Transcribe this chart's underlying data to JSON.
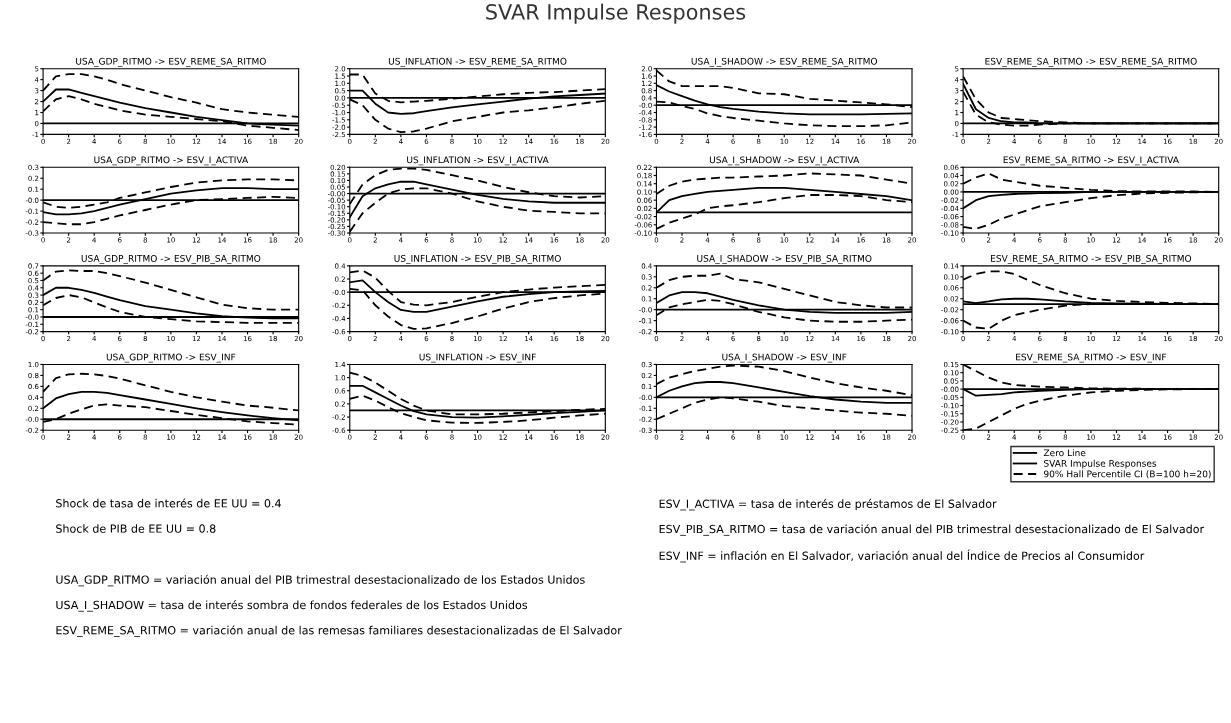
{
  "chart_data": [
    {
      "type": "line",
      "title": "USA_GDP_RITMO -> ESV_REME_SA_RITMO",
      "x": [
        0,
        1,
        2,
        3,
        4,
        5,
        6,
        8,
        10,
        12,
        14,
        16,
        18,
        20
      ],
      "xlim": [
        0,
        20
      ],
      "xticks": [
        0,
        2,
        4,
        6,
        8,
        10,
        12,
        14,
        16,
        18,
        20
      ],
      "ylim": [
        -1,
        5
      ],
      "yticks": [
        -1,
        0,
        1,
        2,
        3,
        4,
        5
      ],
      "ref_lines": [
        {
          "axis": "y",
          "value": 0,
          "color": "#000000"
        }
      ],
      "series": [
        {
          "color": "#000000",
          "line_style": "solid",
          "values": [
            2.0,
            3.1,
            3.1,
            2.8,
            2.5,
            2.2,
            1.9,
            1.4,
            1.0,
            0.6,
            0.3,
            0.0,
            -0.1,
            -0.2
          ]
        },
        {
          "color": "#000000",
          "line_style": "dashed",
          "values": [
            3.0,
            4.3,
            4.5,
            4.5,
            4.3,
            4.0,
            3.6,
            3.0,
            2.4,
            1.9,
            1.3,
            1.0,
            0.8,
            0.6
          ]
        },
        {
          "color": "#000000",
          "line_style": "dashed",
          "values": [
            1.1,
            2.2,
            2.5,
            2.2,
            1.8,
            1.5,
            1.2,
            0.8,
            0.6,
            0.4,
            0.2,
            -0.2,
            -0.4,
            -0.6
          ]
        }
      ]
    },
    {
      "type": "line",
      "title": "US_INFLATION -> ESV_REME_SA_RITMO",
      "x": [
        0,
        1,
        2,
        3,
        4,
        5,
        6,
        8,
        10,
        12,
        14,
        16,
        18,
        20
      ],
      "xlim": [
        0,
        20
      ],
      "xticks": [
        0,
        2,
        4,
        6,
        8,
        10,
        12,
        14,
        16,
        18,
        20
      ],
      "ylim": [
        -2.5,
        2.0
      ],
      "yticks": [
        {
          "value": -2.5,
          "label": "-2.5"
        },
        {
          "value": -2.0,
          "label": "-2.0"
        },
        {
          "value": -1.5,
          "label": "-1.5"
        },
        {
          "value": -1.0,
          "label": "-1.0"
        },
        {
          "value": -0.5,
          "label": "-0.5"
        },
        {
          "value": 0,
          "label": "0.0"
        },
        {
          "value": 0.5,
          "label": "0.5"
        },
        {
          "value": 1.0,
          "label": "1.0"
        },
        {
          "value": 1.5,
          "label": "1.5"
        },
        {
          "value": 2.0,
          "label": "2.0"
        }
      ],
      "ref_lines": [
        {
          "axis": "y",
          "value": 0,
          "color": "#000000"
        }
      ],
      "series": [
        {
          "color": "#000000",
          "line_style": "solid",
          "values": [
            0.5,
            0.5,
            -0.4,
            -1.0,
            -1.1,
            -1.05,
            -0.9,
            -0.65,
            -0.45,
            -0.25,
            -0.05,
            0.1,
            0.2,
            0.3
          ]
        },
        {
          "color": "#000000",
          "line_style": "dashed",
          "values": [
            1.6,
            1.6,
            0.3,
            -0.2,
            -0.3,
            -0.25,
            -0.2,
            -0.05,
            0.1,
            0.25,
            0.35,
            0.4,
            0.5,
            0.6
          ]
        },
        {
          "color": "#000000",
          "line_style": "dashed",
          "values": [
            -0.1,
            -0.5,
            -1.5,
            -2.1,
            -2.35,
            -2.3,
            -2.1,
            -1.6,
            -1.3,
            -1.0,
            -0.85,
            -0.65,
            -0.4,
            -0.2
          ]
        }
      ]
    },
    {
      "type": "line",
      "title": "USA_I_SHADOW -> ESV_REME_SA_RITMO",
      "x": [
        0,
        1,
        2,
        3,
        4,
        5,
        6,
        8,
        10,
        12,
        14,
        16,
        18,
        20
      ],
      "xlim": [
        0,
        20
      ],
      "xticks": [
        0,
        2,
        4,
        6,
        8,
        10,
        12,
        14,
        16,
        18,
        20
      ],
      "ylim": [
        -1.6,
        2.0
      ],
      "yticks": [
        {
          "value": -1.6,
          "label": "-1.6"
        },
        {
          "value": -1.2,
          "label": "-1.2"
        },
        {
          "value": -0.8,
          "label": "-0.8"
        },
        {
          "value": -0.4,
          "label": "-0.4"
        },
        {
          "value": 0,
          "label": "-0.0"
        },
        {
          "value": 0.4,
          "label": "0.4"
        },
        {
          "value": 0.8,
          "label": "0.8"
        },
        {
          "value": 1.2,
          "label": "1.2"
        },
        {
          "value": 1.6,
          "label": "1.6"
        },
        {
          "value": 2.0,
          "label": "2.0"
        }
      ],
      "ref_lines": [
        {
          "axis": "y",
          "value": 0,
          "color": "#000000"
        }
      ],
      "series": [
        {
          "color": "#000000",
          "line_style": "solid",
          "values": [
            1.1,
            0.75,
            0.5,
            0.25,
            0.05,
            -0.1,
            -0.2,
            -0.35,
            -0.45,
            -0.5,
            -0.5,
            -0.5,
            -0.48,
            -0.45
          ]
        },
        {
          "color": "#000000",
          "line_style": "dashed",
          "values": [
            1.9,
            1.3,
            1.05,
            1.05,
            1.05,
            1.05,
            0.95,
            0.65,
            0.6,
            0.35,
            0.25,
            0.15,
            0.05,
            -0.1
          ]
        },
        {
          "color": "#000000",
          "line_style": "dashed",
          "values": [
            0.2,
            0.15,
            -0.05,
            -0.2,
            -0.45,
            -0.6,
            -0.7,
            -0.85,
            -1.0,
            -1.1,
            -1.15,
            -1.15,
            -1.1,
            -0.95
          ]
        }
      ]
    },
    {
      "type": "line",
      "title": "ESV_REME_SA_RITMO -> ESV_REME_SA_RITMO",
      "x": [
        0,
        1,
        2,
        3,
        4,
        5,
        6,
        8,
        10,
        12,
        14,
        16,
        18,
        20
      ],
      "xlim": [
        0,
        20
      ],
      "xticks": [
        0,
        2,
        4,
        6,
        8,
        10,
        12,
        14,
        16,
        18,
        20
      ],
      "ylim": [
        -1,
        5
      ],
      "yticks": [
        -1,
        0,
        1,
        2,
        3,
        4,
        5
      ],
      "ref_lines": [
        {
          "axis": "y",
          "value": 0,
          "color": "#000000"
        }
      ],
      "series": [
        {
          "color": "#000000",
          "line_style": "solid",
          "values": [
            3.6,
            1.3,
            0.5,
            0.2,
            0.1,
            0.1,
            0.0,
            0.0,
            0.0,
            0.0,
            0.0,
            0.0,
            0.0,
            0.0
          ]
        },
        {
          "color": "#000000",
          "line_style": "dashed",
          "values": [
            4.3,
            2.2,
            1.0,
            0.5,
            0.4,
            0.3,
            0.2,
            0.1,
            0.0,
            0.0,
            0.0,
            0.0,
            0.0,
            0.0
          ]
        },
        {
          "color": "#000000",
          "line_style": "dashed",
          "values": [
            2.9,
            0.8,
            0.1,
            -0.1,
            -0.2,
            -0.2,
            -0.1,
            0.0,
            0.0,
            0.0,
            0.0,
            0.0,
            0.0,
            0.0
          ]
        }
      ]
    },
    {
      "type": "line",
      "title": "USA_GDP_RITMO -> ESV_I_ACTIVA",
      "x": [
        0,
        1,
        2,
        3,
        4,
        5,
        6,
        8,
        10,
        12,
        14,
        16,
        18,
        20
      ],
      "xlim": [
        0,
        20
      ],
      "xticks": [
        0,
        2,
        4,
        6,
        8,
        10,
        12,
        14,
        16,
        18,
        20
      ],
      "ylim": [
        -0.3,
        0.3
      ],
      "yticks": [
        {
          "value": -0.3,
          "label": "-0.3"
        },
        {
          "value": -0.2,
          "label": "-0.2"
        },
        {
          "value": -0.1,
          "label": "-0.1"
        },
        {
          "value": 0,
          "label": "-0.0"
        },
        {
          "value": 0.1,
          "label": "0.1"
        },
        {
          "value": 0.2,
          "label": "0.2"
        },
        {
          "value": 0.3,
          "label": "0.3"
        }
      ],
      "ref_lines": [
        {
          "axis": "y",
          "value": 0,
          "color": "#000000"
        }
      ],
      "series": [
        {
          "color": "#000000",
          "line_style": "solid",
          "values": [
            -0.11,
            -0.13,
            -0.13,
            -0.12,
            -0.1,
            -0.07,
            -0.04,
            0.01,
            0.06,
            0.09,
            0.11,
            0.11,
            0.1,
            0.1
          ]
        },
        {
          "color": "#000000",
          "line_style": "dashed",
          "values": [
            -0.02,
            -0.06,
            -0.07,
            -0.06,
            -0.04,
            -0.02,
            0.02,
            0.07,
            0.12,
            0.16,
            0.18,
            0.19,
            0.19,
            0.18
          ]
        },
        {
          "color": "#000000",
          "line_style": "dashed",
          "values": [
            -0.2,
            -0.21,
            -0.22,
            -0.22,
            -0.2,
            -0.17,
            -0.14,
            -0.09,
            -0.04,
            0.0,
            0.01,
            0.02,
            0.03,
            0.02
          ]
        }
      ]
    },
    {
      "type": "line",
      "title": "US_INFLATION -> ESV_I_ACTIVA",
      "x": [
        0,
        1,
        2,
        3,
        4,
        5,
        6,
        8,
        10,
        12,
        14,
        16,
        18,
        20
      ],
      "xlim": [
        0,
        20
      ],
      "xticks": [
        0,
        2,
        4,
        6,
        8,
        10,
        12,
        14,
        16,
        18,
        20
      ],
      "ylim": [
        -0.3,
        0.2
      ],
      "yticks": [
        {
          "value": -0.3,
          "label": "-0.30"
        },
        {
          "value": -0.25,
          "label": "-0.25"
        },
        {
          "value": -0.2,
          "label": "-0.20"
        },
        {
          "value": -0.15,
          "label": "-0.15"
        },
        {
          "value": -0.1,
          "label": "-0.10"
        },
        {
          "value": -0.05,
          "label": "-0.05"
        },
        {
          "value": 0,
          "label": "-0.00"
        },
        {
          "value": 0.05,
          "label": "0.05"
        },
        {
          "value": 0.1,
          "label": "0.10"
        },
        {
          "value": 0.15,
          "label": "0.15"
        },
        {
          "value": 0.2,
          "label": "0.20"
        }
      ],
      "ref_lines": [
        {
          "axis": "y",
          "value": 0,
          "color": "#000000"
        }
      ],
      "series": [
        {
          "color": "#000000",
          "line_style": "solid",
          "values": [
            -0.18,
            -0.02,
            0.04,
            0.07,
            0.09,
            0.09,
            0.07,
            0.03,
            -0.01,
            -0.04,
            -0.06,
            -0.07,
            -0.07,
            -0.07
          ]
        },
        {
          "color": "#000000",
          "line_style": "dashed",
          "values": [
            -0.08,
            0.07,
            0.14,
            0.18,
            0.19,
            0.19,
            0.18,
            0.14,
            0.1,
            0.05,
            0.01,
            -0.02,
            -0.03,
            -0.02
          ]
        },
        {
          "color": "#000000",
          "line_style": "dashed",
          "values": [
            -0.29,
            -0.15,
            -0.07,
            0.0,
            0.03,
            0.04,
            0.04,
            0.0,
            -0.06,
            -0.1,
            -0.13,
            -0.14,
            -0.15,
            -0.15
          ]
        }
      ]
    },
    {
      "type": "line",
      "title": "USA_I_SHADOW -> ESV_I_ACTIVA",
      "x": [
        0,
        1,
        2,
        3,
        4,
        5,
        6,
        8,
        10,
        12,
        14,
        16,
        18,
        20
      ],
      "xlim": [
        0,
        20
      ],
      "xticks": [
        0,
        2,
        4,
        6,
        8,
        10,
        12,
        14,
        16,
        18,
        20
      ],
      "ylim": [
        -0.1,
        0.22
      ],
      "yticks": [
        {
          "value": -0.1,
          "label": "-0.10"
        },
        {
          "value": -0.06,
          "label": "-0.06"
        },
        {
          "value": -0.02,
          "label": "-0.02"
        },
        {
          "value": 0.02,
          "label": "0.02"
        },
        {
          "value": 0.06,
          "label": "0.06"
        },
        {
          "value": 0.1,
          "label": "0.10"
        },
        {
          "value": 0.14,
          "label": "0.14"
        },
        {
          "value": 0.18,
          "label": "0.18"
        },
        {
          "value": 0.22,
          "label": "0.22"
        }
      ],
      "ref_lines": [
        {
          "axis": "y",
          "value": 0,
          "color": "#000000"
        }
      ],
      "series": [
        {
          "color": "#000000",
          "line_style": "solid",
          "values": [
            0.0,
            0.06,
            0.08,
            0.09,
            0.1,
            0.105,
            0.11,
            0.12,
            0.12,
            0.11,
            0.1,
            0.09,
            0.08,
            0.06
          ]
        },
        {
          "color": "#000000",
          "line_style": "dashed",
          "values": [
            0.09,
            0.13,
            0.15,
            0.16,
            0.165,
            0.17,
            0.17,
            0.175,
            0.18,
            0.19,
            0.185,
            0.18,
            0.16,
            0.14
          ]
        },
        {
          "color": "#000000",
          "line_style": "dashed",
          "values": [
            -0.08,
            -0.05,
            -0.03,
            -0.01,
            0.02,
            0.03,
            0.035,
            0.05,
            0.07,
            0.085,
            0.085,
            0.08,
            0.06,
            0.05
          ]
        }
      ]
    },
    {
      "type": "line",
      "title": "ESV_REME_SA_RITMO -> ESV_I_ACTIVA",
      "x": [
        0,
        1,
        2,
        3,
        4,
        5,
        6,
        8,
        10,
        12,
        14,
        16,
        18,
        20
      ],
      "xlim": [
        0,
        20
      ],
      "xticks": [
        0,
        2,
        4,
        6,
        8,
        10,
        12,
        14,
        16,
        18,
        20
      ],
      "ylim": [
        -0.1,
        0.06
      ],
      "yticks": [
        {
          "value": -0.1,
          "label": "-0.10"
        },
        {
          "value": -0.08,
          "label": "-0.08"
        },
        {
          "value": -0.06,
          "label": "-0.06"
        },
        {
          "value": -0.04,
          "label": "-0.04"
        },
        {
          "value": -0.02,
          "label": "-0.02"
        },
        {
          "value": 0,
          "label": "0.00"
        },
        {
          "value": 0.02,
          "label": "0.02"
        },
        {
          "value": 0.04,
          "label": "0.04"
        },
        {
          "value": 0.06,
          "label": "0.06"
        }
      ],
      "ref_lines": [
        {
          "axis": "y",
          "value": 0,
          "color": "#000000"
        }
      ],
      "series": [
        {
          "color": "#000000",
          "line_style": "solid",
          "values": [
            -0.04,
            -0.02,
            -0.01,
            -0.007,
            -0.005,
            -0.004,
            -0.003,
            -0.002,
            0.0,
            0.0,
            0.0,
            0.0,
            0.0,
            0.0
          ]
        },
        {
          "color": "#000000",
          "line_style": "dashed",
          "values": [
            0.02,
            0.035,
            0.045,
            0.03,
            0.025,
            0.02,
            0.015,
            0.01,
            0.005,
            0.002,
            0.001,
            0.001,
            0.001,
            0.0
          ]
        },
        {
          "color": "#000000",
          "line_style": "dashed",
          "values": [
            -0.085,
            -0.09,
            -0.08,
            -0.065,
            -0.055,
            -0.045,
            -0.035,
            -0.025,
            -0.015,
            -0.008,
            -0.004,
            -0.002,
            -0.001,
            0.0
          ]
        }
      ]
    },
    {
      "type": "line",
      "title": "USA_GDP_RITMO -> ESV_PIB_SA_RITMO",
      "x": [
        0,
        1,
        2,
        3,
        4,
        5,
        6,
        8,
        10,
        12,
        14,
        16,
        18,
        20
      ],
      "xlim": [
        0,
        20
      ],
      "xticks": [
        0,
        2,
        4,
        6,
        8,
        10,
        12,
        14,
        16,
        18,
        20
      ],
      "ylim": [
        -0.2,
        0.7
      ],
      "yticks": [
        {
          "value": -0.2,
          "label": "-0.2"
        },
        {
          "value": -0.1,
          "label": "-0.1"
        },
        {
          "value": 0,
          "label": "-0.0"
        },
        {
          "value": 0.1,
          "label": "0.1"
        },
        {
          "value": 0.2,
          "label": "0.2"
        },
        {
          "value": 0.3,
          "label": "0.3"
        },
        {
          "value": 0.4,
          "label": "0.4"
        },
        {
          "value": 0.5,
          "label": "0.5"
        },
        {
          "value": 0.6,
          "label": "0.6"
        },
        {
          "value": 0.7,
          "label": "0.7"
        }
      ],
      "ref_lines": [
        {
          "axis": "y",
          "value": 0,
          "color": "#000000"
        }
      ],
      "series": [
        {
          "color": "#000000",
          "line_style": "solid",
          "values": [
            0.3,
            0.4,
            0.4,
            0.37,
            0.33,
            0.28,
            0.23,
            0.15,
            0.1,
            0.05,
            0.01,
            -0.01,
            -0.02,
            -0.02
          ]
        },
        {
          "color": "#000000",
          "line_style": "dashed",
          "values": [
            0.5,
            0.62,
            0.64,
            0.63,
            0.63,
            0.6,
            0.56,
            0.47,
            0.37,
            0.27,
            0.17,
            0.12,
            0.1,
            0.1
          ]
        },
        {
          "color": "#000000",
          "line_style": "dashed",
          "values": [
            0.16,
            0.26,
            0.3,
            0.27,
            0.2,
            0.13,
            0.07,
            0.0,
            -0.03,
            -0.06,
            -0.07,
            -0.08,
            -0.08,
            -0.08
          ]
        }
      ]
    },
    {
      "type": "line",
      "title": "US_INFLATION -> ESV_PIB_SA_RITMO",
      "x": [
        0,
        1,
        2,
        3,
        4,
        5,
        6,
        8,
        10,
        12,
        14,
        16,
        18,
        20
      ],
      "xlim": [
        0,
        20
      ],
      "xticks": [
        0,
        2,
        4,
        6,
        8,
        10,
        12,
        14,
        16,
        18,
        20
      ],
      "ylim": [
        -0.6,
        0.4
      ],
      "yticks": [
        {
          "value": -0.6,
          "label": "-0.6"
        },
        {
          "value": -0.4,
          "label": "-0.4"
        },
        {
          "value": -0.2,
          "label": "-0.2"
        },
        {
          "value": 0,
          "label": "-0.0"
        },
        {
          "value": 0.2,
          "label": "0.2"
        },
        {
          "value": 0.4,
          "label": "0.4"
        }
      ],
      "ref_lines": [
        {
          "axis": "y",
          "value": 0,
          "color": "#000000"
        }
      ],
      "series": [
        {
          "color": "#000000",
          "line_style": "solid",
          "values": [
            0.15,
            0.18,
            0.0,
            -0.15,
            -0.27,
            -0.3,
            -0.3,
            -0.22,
            -0.14,
            -0.07,
            -0.03,
            0.0,
            0.01,
            0.02
          ]
        },
        {
          "color": "#000000",
          "line_style": "dashed",
          "values": [
            0.3,
            0.33,
            0.22,
            0.02,
            -0.15,
            -0.19,
            -0.2,
            -0.15,
            -0.07,
            0.0,
            0.04,
            0.07,
            0.09,
            0.11
          ]
        },
        {
          "color": "#000000",
          "line_style": "dashed",
          "values": [
            0.05,
            0.03,
            -0.2,
            -0.37,
            -0.5,
            -0.56,
            -0.55,
            -0.47,
            -0.37,
            -0.25,
            -0.15,
            -0.09,
            -0.05,
            -0.02
          ]
        }
      ]
    },
    {
      "type": "line",
      "title": "USA_I_SHADOW -> ESV_PIB_SA_RITMO",
      "x": [
        0,
        1,
        2,
        3,
        4,
        5,
        6,
        8,
        10,
        12,
        14,
        16,
        18,
        20
      ],
      "xlim": [
        0,
        20
      ],
      "xticks": [
        0,
        2,
        4,
        6,
        8,
        10,
        12,
        14,
        16,
        18,
        20
      ],
      "ylim": [
        -0.2,
        0.4
      ],
      "yticks": [
        {
          "value": -0.2,
          "label": "-0.2"
        },
        {
          "value": -0.1,
          "label": "-0.1"
        },
        {
          "value": 0,
          "label": "-0.0"
        },
        {
          "value": 0.1,
          "label": "0.1"
        },
        {
          "value": 0.2,
          "label": "0.2"
        },
        {
          "value": 0.3,
          "label": "0.3"
        },
        {
          "value": 0.4,
          "label": "0.4"
        }
      ],
      "ref_lines": [
        {
          "axis": "y",
          "value": 0,
          "color": "#000000"
        }
      ],
      "series": [
        {
          "color": "#000000",
          "line_style": "solid",
          "values": [
            0.06,
            0.13,
            0.16,
            0.16,
            0.15,
            0.12,
            0.09,
            0.04,
            0.0,
            -0.02,
            -0.03,
            -0.03,
            -0.03,
            -0.02
          ]
        },
        {
          "color": "#000000",
          "line_style": "dashed",
          "values": [
            0.2,
            0.27,
            0.3,
            0.31,
            0.31,
            0.33,
            0.28,
            0.25,
            0.19,
            0.13,
            0.07,
            0.04,
            0.02,
            0.02
          ]
        },
        {
          "color": "#000000",
          "line_style": "dashed",
          "values": [
            -0.05,
            0.02,
            0.05,
            0.07,
            0.09,
            0.08,
            0.05,
            -0.02,
            -0.07,
            -0.1,
            -0.11,
            -0.11,
            -0.1,
            -0.09
          ]
        }
      ]
    },
    {
      "type": "line",
      "title": "ESV_REME_SA_RITMO -> ESV_PIB_SA_RITMO",
      "x": [
        0,
        1,
        2,
        3,
        4,
        5,
        6,
        8,
        10,
        12,
        14,
        16,
        18,
        20
      ],
      "xlim": [
        0,
        20
      ],
      "xticks": [
        0,
        2,
        4,
        6,
        8,
        10,
        12,
        14,
        16,
        18,
        20
      ],
      "ylim": [
        -0.1,
        0.14
      ],
      "yticks": [
        {
          "value": -0.1,
          "label": "-0.10"
        },
        {
          "value": -0.06,
          "label": "-0.06"
        },
        {
          "value": -0.02,
          "label": "-0.02"
        },
        {
          "value": 0.02,
          "label": "0.02"
        },
        {
          "value": 0.06,
          "label": "0.06"
        },
        {
          "value": 0.1,
          "label": "0.10"
        },
        {
          "value": 0.14,
          "label": "0.14"
        }
      ],
      "ref_lines": [
        {
          "axis": "y",
          "value": 0,
          "color": "#000000"
        }
      ],
      "series": [
        {
          "color": "#000000",
          "line_style": "solid",
          "values": [
            0.01,
            0.004,
            0.01,
            0.018,
            0.02,
            0.02,
            0.018,
            0.01,
            0.005,
            0.003,
            0.002,
            0.001,
            0.0,
            0.0
          ]
        },
        {
          "color": "#000000",
          "line_style": "dashed",
          "values": [
            0.09,
            0.11,
            0.12,
            0.12,
            0.11,
            0.09,
            0.07,
            0.04,
            0.02,
            0.012,
            0.008,
            0.005,
            0.003,
            0.0
          ]
        },
        {
          "color": "#000000",
          "line_style": "dashed",
          "values": [
            -0.06,
            -0.085,
            -0.09,
            -0.06,
            -0.04,
            -0.03,
            -0.02,
            -0.005,
            0.0,
            0.0,
            0.0,
            0.0,
            0.0,
            0.0
          ]
        }
      ]
    },
    {
      "type": "line",
      "title": "USA_GDP_RITMO -> ESV_INF",
      "x": [
        0,
        1,
        2,
        3,
        4,
        5,
        6,
        8,
        10,
        12,
        14,
        16,
        18,
        20
      ],
      "xlim": [
        0,
        20
      ],
      "xticks": [
        0,
        2,
        4,
        6,
        8,
        10,
        12,
        14,
        16,
        18,
        20
      ],
      "ylim": [
        -0.2,
        1.0
      ],
      "yticks": [
        {
          "value": -0.2,
          "label": "-0.2"
        },
        {
          "value": 0,
          "label": "-0.0"
        },
        {
          "value": 0.2,
          "label": "0.2"
        },
        {
          "value": 0.4,
          "label": "0.4"
        },
        {
          "value": 0.6,
          "label": "0.6"
        },
        {
          "value": 0.8,
          "label": "0.8"
        },
        {
          "value": 1.0,
          "label": "1.0"
        }
      ],
      "ref_lines": [
        {
          "axis": "y",
          "value": 0,
          "color": "#000000"
        }
      ],
      "series": [
        {
          "color": "#000000",
          "line_style": "solid",
          "values": [
            0.2,
            0.38,
            0.46,
            0.5,
            0.5,
            0.48,
            0.44,
            0.36,
            0.28,
            0.2,
            0.13,
            0.07,
            0.02,
            -0.02
          ]
        },
        {
          "color": "#000000",
          "line_style": "dashed",
          "values": [
            0.5,
            0.75,
            0.82,
            0.83,
            0.82,
            0.79,
            0.74,
            0.62,
            0.5,
            0.4,
            0.32,
            0.25,
            0.21,
            0.16
          ]
        },
        {
          "color": "#000000",
          "line_style": "dashed",
          "values": [
            -0.05,
            0.0,
            0.1,
            0.18,
            0.25,
            0.27,
            0.25,
            0.22,
            0.15,
            0.08,
            0.02,
            -0.04,
            -0.07,
            -0.1
          ]
        }
      ]
    },
    {
      "type": "line",
      "title": "US_INFLATION -> ESV_INF",
      "x": [
        0,
        1,
        2,
        3,
        4,
        5,
        6,
        8,
        10,
        12,
        14,
        16,
        18,
        20
      ],
      "xlim": [
        0,
        20
      ],
      "xticks": [
        0,
        2,
        4,
        6,
        8,
        10,
        12,
        14,
        16,
        18,
        20
      ],
      "ylim": [
        -0.6,
        1.4
      ],
      "yticks": [
        {
          "value": -0.6,
          "label": "-0.6"
        },
        {
          "value": -0.2,
          "label": "-0.2"
        },
        {
          "value": 0.2,
          "label": "0.2"
        },
        {
          "value": 0.6,
          "label": "0.6"
        },
        {
          "value": 1.0,
          "label": "1.0"
        },
        {
          "value": 1.4,
          "label": "1.4"
        }
      ],
      "ref_lines": [
        {
          "axis": "y",
          "value": 0,
          "color": "#000000"
        }
      ],
      "series": [
        {
          "color": "#000000",
          "line_style": "solid",
          "values": [
            0.75,
            0.75,
            0.55,
            0.35,
            0.15,
            -0.02,
            -0.12,
            -0.2,
            -0.22,
            -0.18,
            -0.13,
            -0.08,
            -0.04,
            0.0
          ]
        },
        {
          "color": "#000000",
          "line_style": "dashed",
          "values": [
            1.15,
            1.05,
            0.85,
            0.6,
            0.35,
            0.15,
            0.0,
            -0.12,
            -0.12,
            -0.1,
            -0.06,
            -0.02,
            0.02,
            0.05
          ]
        },
        {
          "color": "#000000",
          "line_style": "dashed",
          "values": [
            0.35,
            0.45,
            0.3,
            0.1,
            -0.08,
            -0.2,
            -0.3,
            -0.37,
            -0.38,
            -0.35,
            -0.3,
            -0.22,
            -0.15,
            -0.1
          ]
        }
      ]
    },
    {
      "type": "line",
      "title": "USA_I_SHADOW -> ESV_INF",
      "x": [
        0,
        1,
        2,
        3,
        4,
        5,
        6,
        8,
        10,
        12,
        14,
        16,
        18,
        20
      ],
      "xlim": [
        0,
        20
      ],
      "xticks": [
        0,
        2,
        4,
        6,
        8,
        10,
        12,
        14,
        16,
        18,
        20
      ],
      "ylim": [
        -0.3,
        0.3
      ],
      "yticks": [
        {
          "value": -0.3,
          "label": "-0.3"
        },
        {
          "value": -0.2,
          "label": "-0.2"
        },
        {
          "value": -0.1,
          "label": "-0.1"
        },
        {
          "value": 0,
          "label": "-0.0"
        },
        {
          "value": 0.1,
          "label": "0.1"
        },
        {
          "value": 0.2,
          "label": "0.2"
        },
        {
          "value": 0.3,
          "label": "0.3"
        }
      ],
      "ref_lines": [
        {
          "axis": "y",
          "value": 0,
          "color": "#000000"
        }
      ],
      "series": [
        {
          "color": "#000000",
          "line_style": "solid",
          "values": [
            0.0,
            0.06,
            0.1,
            0.13,
            0.14,
            0.14,
            0.13,
            0.09,
            0.05,
            0.01,
            -0.02,
            -0.04,
            -0.05,
            -0.05
          ]
        },
        {
          "color": "#000000",
          "line_style": "dashed",
          "values": [
            0.12,
            0.18,
            0.21,
            0.24,
            0.26,
            0.28,
            0.29,
            0.28,
            0.24,
            0.18,
            0.13,
            0.09,
            0.06,
            0.02
          ]
        },
        {
          "color": "#000000",
          "line_style": "dashed",
          "values": [
            -0.2,
            -0.15,
            -0.1,
            -0.05,
            -0.02,
            0.0,
            -0.01,
            -0.04,
            -0.08,
            -0.1,
            -0.12,
            -0.14,
            -0.15,
            -0.17
          ]
        }
      ]
    },
    {
      "type": "line",
      "title": "ESV_REME_SA_RITMO -> ESV_INF",
      "x": [
        0,
        1,
        2,
        3,
        4,
        5,
        6,
        8,
        10,
        12,
        14,
        16,
        18,
        20
      ],
      "xlim": [
        0,
        20
      ],
      "xticks": [
        0,
        2,
        4,
        6,
        8,
        10,
        12,
        14,
        16,
        18,
        20
      ],
      "ylim": [
        -0.25,
        0.15
      ],
      "yticks": [
        {
          "value": -0.25,
          "label": "-0.25"
        },
        {
          "value": -0.2,
          "label": "-0.20"
        },
        {
          "value": -0.15,
          "label": "-0.15"
        },
        {
          "value": -0.1,
          "label": "-0.10"
        },
        {
          "value": -0.05,
          "label": "-0.05"
        },
        {
          "value": 0,
          "label": "-0.00"
        },
        {
          "value": 0.05,
          "label": "0.05"
        },
        {
          "value": 0.1,
          "label": "0.10"
        },
        {
          "value": 0.15,
          "label": "0.15"
        }
      ],
      "ref_lines": [
        {
          "axis": "y",
          "value": 0,
          "color": "#000000",
          "label": "Zero Line"
        }
      ],
      "legend": "bottom right",
      "series": [
        {
          "name": "SVAR Impulse Responses",
          "color": "#000000",
          "line_style": "solid",
          "values": [
            0.0,
            -0.04,
            -0.035,
            -0.03,
            -0.02,
            -0.015,
            -0.01,
            -0.005,
            0.0,
            0.0,
            0.0,
            0.0,
            0.0,
            0.0
          ]
        },
        {
          "name": "90% Hall Percentile CI (B=100 h=20)",
          "color": "#000000",
          "line_style": "dashed",
          "values": [
            0.15,
            0.11,
            0.07,
            0.04,
            0.025,
            0.02,
            0.015,
            0.01,
            0.005,
            0.003,
            0.002,
            0.001,
            0.0,
            0.0
          ]
        },
        {
          "color": "#000000",
          "line_style": "dashed",
          "values": [
            -0.25,
            -0.24,
            -0.2,
            -0.16,
            -0.12,
            -0.09,
            -0.07,
            -0.04,
            -0.02,
            -0.01,
            -0.005,
            -0.002,
            0.0,
            0.0
          ]
        }
      ]
    },
    {
      "type": "other",
      "title": "SVAR Impulse Responses",
      "annotations": [
        "Shock de tasa de interés de EE UU = 0.4",
        "Shock de PIB de EE UU = 0.8",
        "USA_GDP_RITMO = variación anual del PIB trimestral desestacionalizado de los Estados Unidos",
        "USA_I_SHADOW = tasa de interés sombra de fondos federales de los Estados Unidos",
        "ESV_REME_SA_RITMO = variación anual de las remesas familiares desestacionalizadas de El Salvador",
        "ESV_I_ACTIVA = tasa de interés de préstamos de El Salvador",
        "ESV_PIB_SA_RITMO = tasa de variación anual del PIB trimestral desestacionalizado de El Salvador",
        "ESV_INF = inflación en El Salvador, variación anual del Índice de Precios al Consumidor"
      ]
    }
  ]
}
